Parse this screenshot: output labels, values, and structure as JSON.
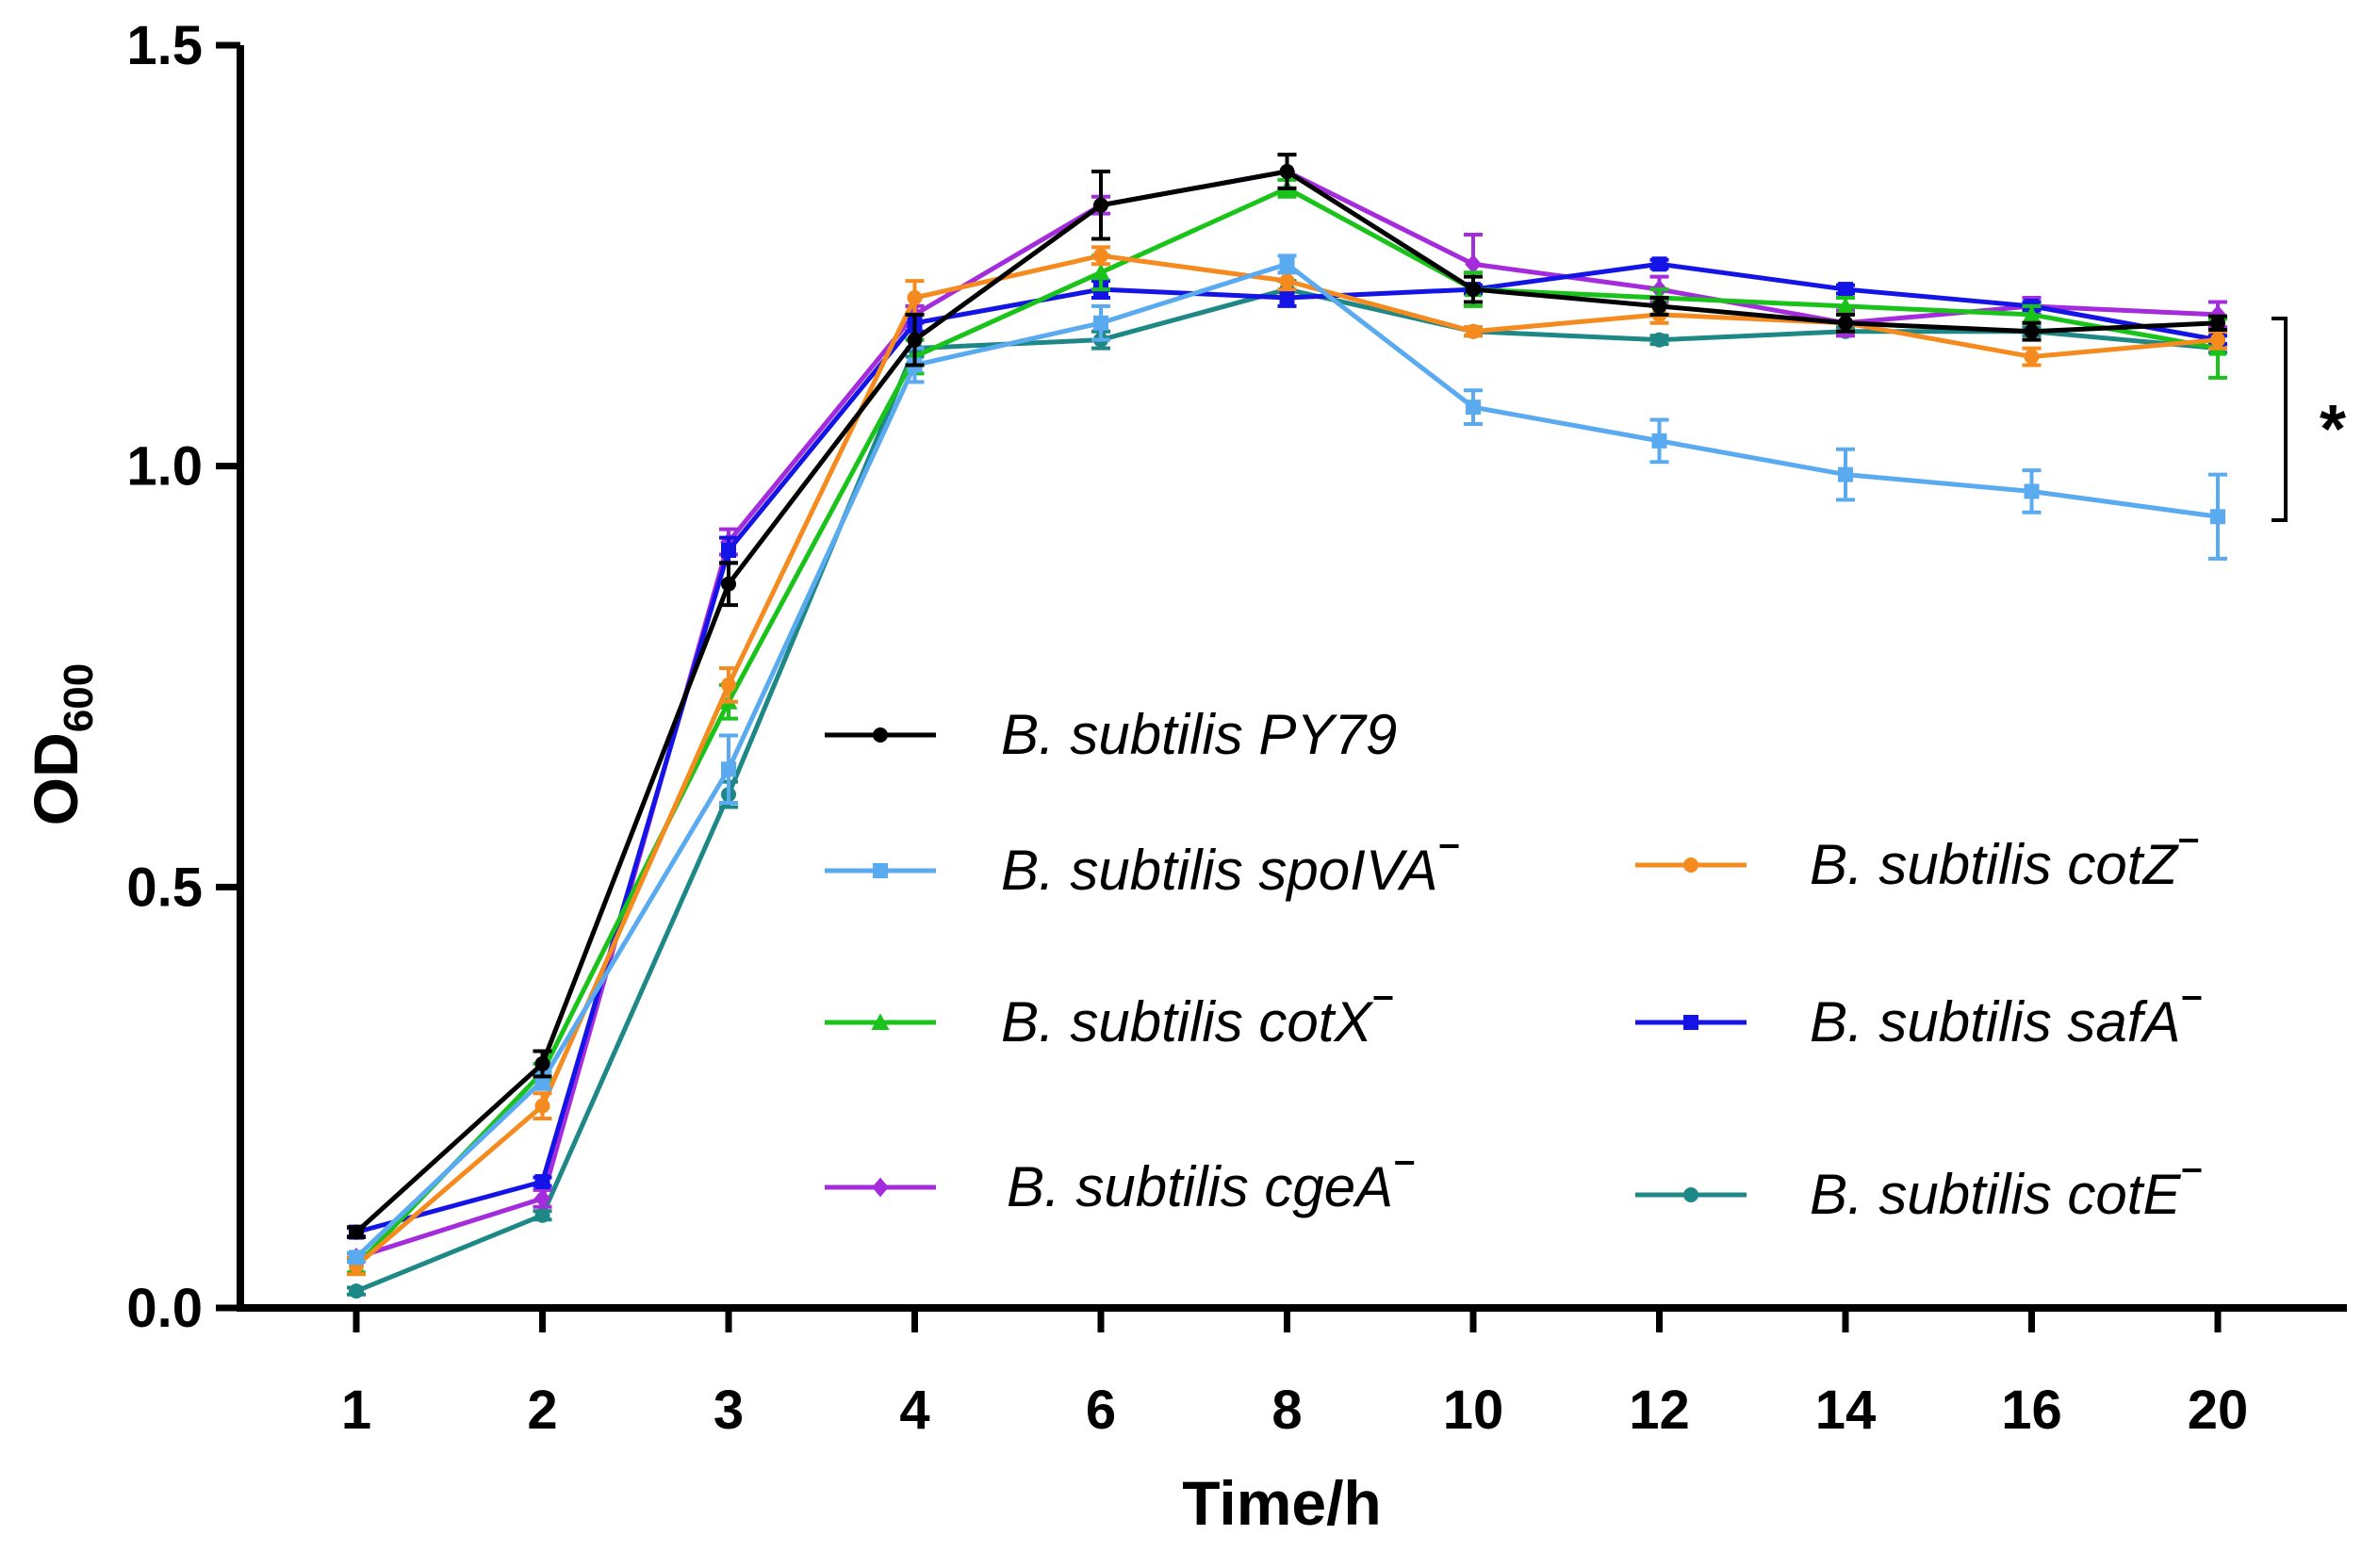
{
  "chart_data": {
    "type": "line",
    "title": "",
    "xlabel": "Time/h",
    "ylabel_main": "OD",
    "ylabel_sub": "600",
    "categories": [
      "1",
      "2",
      "3",
      "4",
      "6",
      "8",
      "10",
      "12",
      "14",
      "16",
      "20"
    ],
    "ylim": [
      0,
      1.5
    ],
    "yticks": [
      "0.0",
      "0.5",
      "1.0",
      "1.5"
    ],
    "ytick_values": [
      0,
      0.5,
      1.0,
      1.5
    ],
    "grid": false,
    "legend_position": "center-right",
    "significance": "*",
    "series": [
      {
        "name": "B. subtilis PY79",
        "mutant": false,
        "color": "#000000",
        "marker": "circle",
        "values": [
          0.09,
          0.29,
          0.86,
          1.15,
          1.31,
          1.35,
          1.21,
          1.19,
          1.17,
          1.16,
          1.17
        ],
        "errors": [
          0.006,
          0.015,
          0.025,
          0.03,
          0.04,
          0.02,
          0.015,
          0.01,
          0.01,
          0.01,
          0.008
        ]
      },
      {
        "name": "B. subtilis spoIVA",
        "mutant": true,
        "color": "#5aaaf0",
        "marker": "square",
        "values": [
          0.06,
          0.27,
          0.64,
          1.12,
          1.17,
          1.24,
          1.07,
          1.03,
          0.99,
          0.97,
          0.94
        ],
        "errors": [
          0.005,
          0.01,
          0.04,
          0.02,
          0.02,
          0.01,
          0.02,
          0.025,
          0.03,
          0.025,
          0.05
        ]
      },
      {
        "name": "B. subtilis cotZ",
        "mutant": true,
        "color": "#f58b1e",
        "marker": "circle",
        "values": [
          0.05,
          0.24,
          0.74,
          1.2,
          1.25,
          1.22,
          1.16,
          1.18,
          1.17,
          1.13,
          1.15
        ],
        "errors": [
          0.01,
          0.015,
          0.02,
          0.02,
          0.01,
          0.01,
          0.005,
          0.01,
          0.01,
          0.01,
          0.01
        ]
      },
      {
        "name": "B. subtilis cotX",
        "mutant": true,
        "color": "#19c319",
        "marker": "triangle",
        "values": [
          0.05,
          0.28,
          0.72,
          1.13,
          1.23,
          1.33,
          1.21,
          1.2,
          1.19,
          1.18,
          1.14
        ],
        "errors": [
          0.008,
          0.01,
          0.02,
          0.02,
          0.02,
          0.01,
          0.02,
          0.01,
          0.01,
          0.01,
          0.035
        ]
      },
      {
        "name": "B. subtilis safA",
        "mutant": true,
        "color": "#1414e6",
        "marker": "square",
        "values": [
          0.09,
          0.15,
          0.9,
          1.17,
          1.21,
          1.2,
          1.21,
          1.24,
          1.21,
          1.19,
          1.15
        ],
        "errors": [
          0.005,
          0.005,
          0.015,
          0.01,
          0.01,
          0.01,
          0.005,
          0.005,
          0.005,
          0.005,
          0.005
        ]
      },
      {
        "name": "B. subtilis cgeA",
        "mutant": true,
        "color": "#a52cdc",
        "marker": "diamond",
        "values": [
          0.06,
          0.13,
          0.91,
          1.18,
          1.31,
          1.35,
          1.24,
          1.21,
          1.17,
          1.19,
          1.18
        ],
        "errors": [
          0.005,
          0.01,
          0.015,
          0.01,
          0.01,
          0.02,
          0.035,
          0.015,
          0.015,
          0.01,
          0.015
        ]
      },
      {
        "name": "B. subtilis cotE",
        "mutant": true,
        "color": "#1d8886",
        "marker": "circle",
        "values": [
          0.02,
          0.11,
          0.61,
          1.14,
          1.15,
          1.21,
          1.16,
          1.15,
          1.16,
          1.16,
          1.14
        ],
        "errors": [
          0.004,
          0.005,
          0.015,
          0.01,
          0.01,
          0.01,
          0.005,
          0.005,
          0.005,
          0.005,
          0.005
        ]
      }
    ]
  }
}
